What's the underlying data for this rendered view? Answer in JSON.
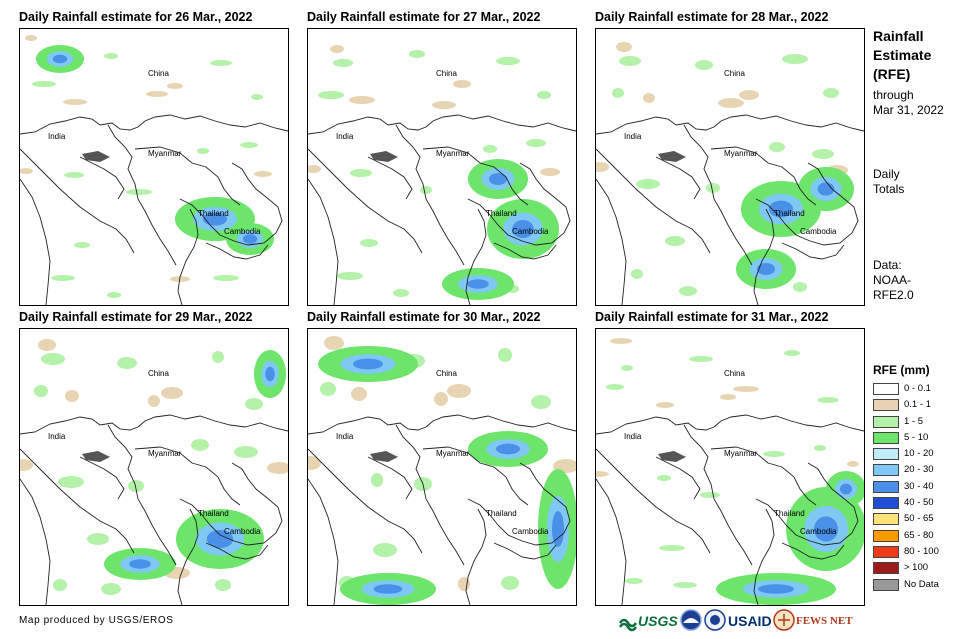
{
  "panels": [
    {
      "title": "Daily Rainfall estimate for 26 Mar., 2022"
    },
    {
      "title": "Daily Rainfall estimate for 27 Mar., 2022"
    },
    {
      "title": "Daily Rainfall estimate for 28 Mar., 2022"
    },
    {
      "title": "Daily Rainfall estimate for 29 Mar., 2022"
    },
    {
      "title": "Daily Rainfall estimate for 30 Mar., 2022"
    },
    {
      "title": "Daily Rainfall estimate for 31 Mar., 2022"
    }
  ],
  "countries": {
    "china": "China",
    "india": "India",
    "myanmar": "Myanmar",
    "thailand": "Thailand",
    "cambodia": "Cambodia"
  },
  "sidebar": {
    "title_line1": "Rainfall",
    "title_line2": "Estimate",
    "title_line3": "(RFE)",
    "sub_line1": "through",
    "sub_line2": "Mar 31, 2022",
    "daily_line1": "Daily",
    "daily_line2": "Totals",
    "data_line1": "Data:",
    "data_line2": "NOAA-",
    "data_line3": "RFE2.0"
  },
  "legend": {
    "title": "RFE (mm)",
    "items": [
      {
        "label": "0 - 0.1",
        "color": "#ffffff"
      },
      {
        "label": "0.1 - 1",
        "color": "#e8d4b2"
      },
      {
        "label": "1 - 5",
        "color": "#b3f2a8"
      },
      {
        "label": "5 - 10",
        "color": "#6de46a"
      },
      {
        "label": "10 - 20",
        "color": "#bfeef8"
      },
      {
        "label": "20 - 30",
        "color": "#7fc8f4"
      },
      {
        "label": "30 - 40",
        "color": "#4a90e8"
      },
      {
        "label": "40 - 50",
        "color": "#1f4fd6"
      },
      {
        "label": "50 - 65",
        "color": "#ffe27a"
      },
      {
        "label": "65 - 80",
        "color": "#ff9a00"
      },
      {
        "label": "80 - 100",
        "color": "#f03a1a"
      },
      {
        "label": "> 100",
        "color": "#a01c1c"
      },
      {
        "label": "No Data",
        "color": "#999999"
      }
    ]
  },
  "credit": "Map produced by USGS/EROS",
  "logos": {
    "usgs": "USGS",
    "usaid": "USAID",
    "fewsnet": "FEWS NET"
  }
}
